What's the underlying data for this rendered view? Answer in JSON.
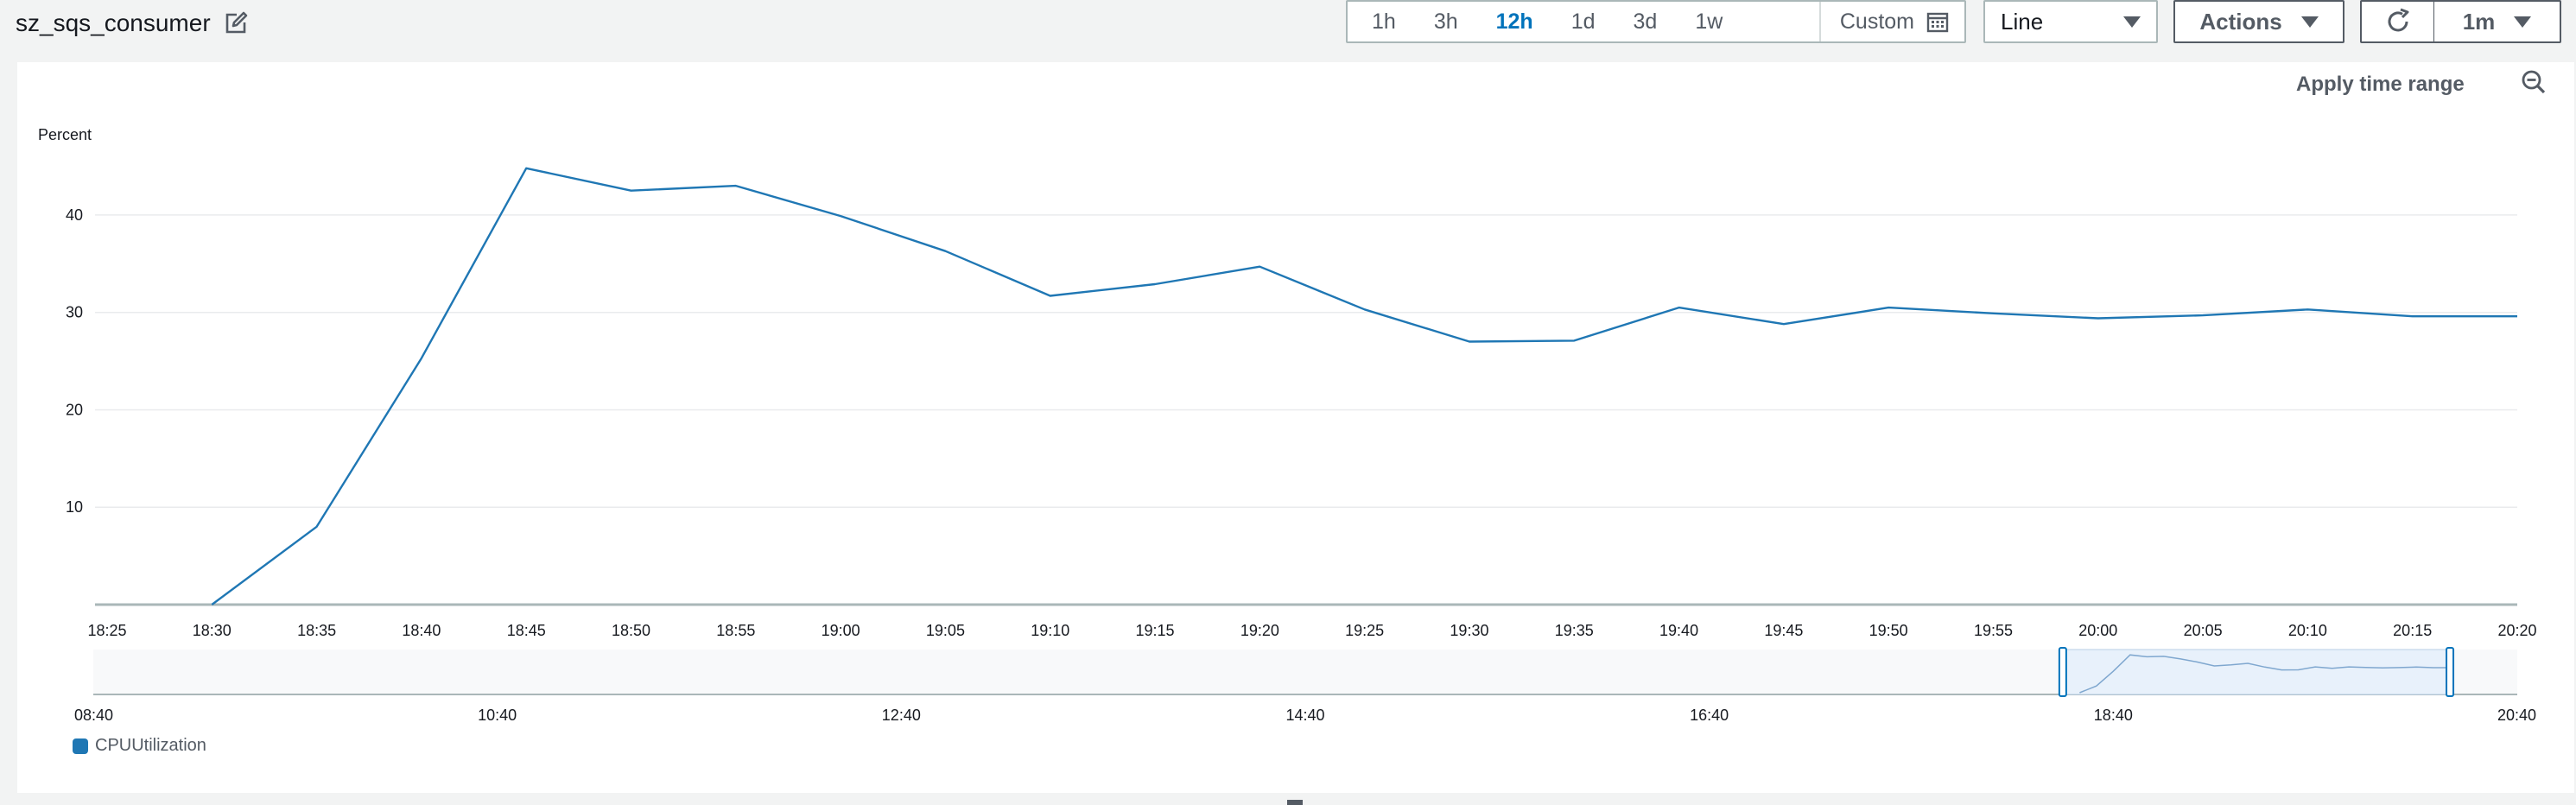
{
  "header": {
    "title": "sz_sqs_consumer",
    "edit_icon": "edit-icon"
  },
  "time_ranges": [
    {
      "label": "1h",
      "active": false
    },
    {
      "label": "3h",
      "active": false
    },
    {
      "label": "12h",
      "active": true
    },
    {
      "label": "1d",
      "active": false
    },
    {
      "label": "3d",
      "active": false
    },
    {
      "label": "1w",
      "active": false
    }
  ],
  "custom_label": "Custom",
  "chart_type_select": "Line",
  "actions_label": "Actions",
  "refresh_interval": "1m",
  "apply_time_range": "Apply time range",
  "chart_data": {
    "type": "line",
    "ylabel": "Percent",
    "y_ticks": [
      "10",
      "20",
      "30",
      "40"
    ],
    "ylim": [
      0,
      47
    ],
    "x_ticks": [
      "18:25",
      "18:30",
      "18:35",
      "18:40",
      "18:45",
      "18:50",
      "18:55",
      "19:00",
      "19:05",
      "19:10",
      "19:15",
      "19:20",
      "19:25",
      "19:30",
      "19:35",
      "19:40",
      "19:45",
      "19:50",
      "19:55",
      "20:00",
      "20:05",
      "20:10",
      "20:15",
      "20:20"
    ],
    "x": [
      "18:30",
      "18:35",
      "18:40",
      "18:45",
      "18:50",
      "18:55",
      "19:00",
      "19:05",
      "19:10",
      "19:15",
      "19:20",
      "19:25",
      "19:30",
      "19:35",
      "19:40",
      "19:45",
      "19:50",
      "19:55",
      "20:00",
      "20:05",
      "20:10",
      "20:15",
      "20:20"
    ],
    "series": [
      {
        "name": "CPUUtilization",
        "color": "#1f77b4",
        "values": [
          0,
          8,
          25.3,
          44.8,
          42.5,
          43.0,
          39.9,
          36.3,
          31.7,
          32.9,
          34.7,
          30.3,
          27.0,
          27.1,
          30.5,
          28.8,
          30.5,
          29.9,
          29.4,
          29.7,
          30.3,
          29.6,
          29.6
        ]
      }
    ],
    "overview_ticks": [
      "08:40",
      "10:40",
      "12:40",
      "14:40",
      "16:40",
      "18:40",
      "20:40"
    ],
    "grid": true,
    "legend_position": "bottom-left"
  }
}
